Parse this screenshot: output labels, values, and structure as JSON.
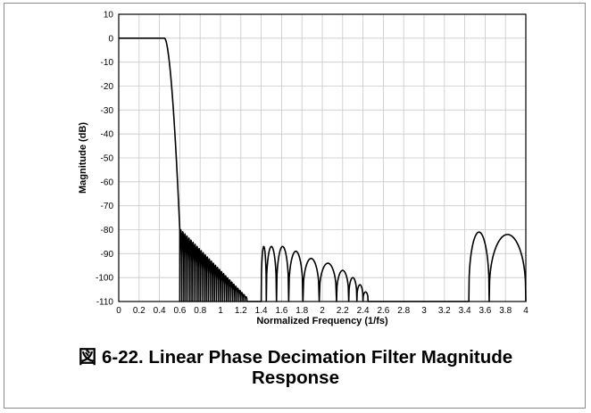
{
  "chart_data": {
    "type": "line",
    "xlabel": "Normalized Frequency (1/fs)",
    "ylabel": "Magnitude (dB)",
    "xlim": [
      0,
      4
    ],
    "ylim": [
      -110,
      10
    ],
    "xticks": [
      "0",
      "0.2",
      "0.4",
      "0.6",
      "0.8",
      "1",
      "1.2",
      "1.4",
      "1.6",
      "1.8",
      "2",
      "2.2",
      "2.4",
      "2.6",
      "2.8",
      "3",
      "3.2",
      "3.4",
      "3.6",
      "3.8",
      "4"
    ],
    "yticks": [
      "10",
      "0",
      "-10",
      "-20",
      "-30",
      "-40",
      "-50",
      "-60",
      "-70",
      "-80",
      "-90",
      "-100",
      "-110"
    ],
    "grid": true,
    "series": [
      {
        "color": "#000000",
        "passband": {
          "x": [
            0,
            0.45
          ],
          "y": 0
        },
        "transition": {
          "x": [
            0.45,
            0.6
          ],
          "y": [
            0,
            -80
          ]
        },
        "stopband_lobes": [
          {
            "x_start": 0.6,
            "x_end": 1.25,
            "lobe_width": 0.02,
            "peak_start": -80,
            "peak_end": -108
          },
          {
            "x_start": 1.4,
            "x_end": 2.62,
            "lobe_width": [
              0.05,
              0.1,
              0.12,
              0.14,
              0.16,
              0.17,
              0.12,
              0.08,
              0.06,
              0.05
            ],
            "peaks": [
              -87,
              -87,
              -87,
              -89,
              -92,
              -94,
              -97,
              -100,
              -103,
              -106
            ]
          },
          {
            "x_start": 3.44,
            "x_end": 3.64,
            "peak": -81,
            "peak_x": 3.52
          },
          {
            "x_start": 3.64,
            "x_end": 4.0,
            "peak": -82,
            "peak_x": 3.81
          }
        ]
      }
    ]
  },
  "caption": {
    "line1": "図 6-22. Linear Phase Decimation Filter Magnitude",
    "line2": "Response"
  }
}
